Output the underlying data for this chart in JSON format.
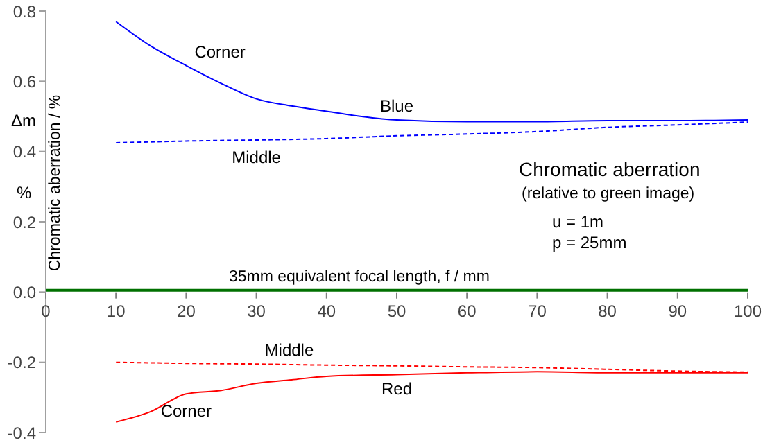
{
  "chart_data": {
    "type": "line",
    "title": "Chromatic aberration",
    "subtitle": "(relative to green image)",
    "xlabel": "35mm equivalent focal length, f / mm",
    "ylabel": "Chromatic aberration  / %",
    "annotations": [
      "Δm",
      "%",
      "u = 1m",
      "p = 25mm",
      {
        "text": "Blue",
        "x": 50,
        "y": 0.49
      },
      {
        "text": "Red",
        "x": 50,
        "y": -0.235
      }
    ],
    "xlim": [
      0,
      100
    ],
    "xticks": [
      0,
      10,
      20,
      30,
      40,
      50,
      60,
      70,
      80,
      90,
      100
    ],
    "ylim": [
      -0.4,
      0.8
    ],
    "yticks": [
      0.8,
      0.6,
      0.4,
      0.2,
      {
        "value": 0,
        "label": "0.0"
      },
      -0.2,
      -0.4
    ],
    "marker": "none",
    "grid": false,
    "legend": false,
    "series": [
      {
        "name": "Corner",
        "color": "#0000ff",
        "line_style": "solid",
        "x": [
          10,
          15,
          20,
          25,
          30,
          35,
          40,
          45,
          50,
          60,
          70,
          80,
          90,
          100
        ],
        "values": [
          0.77,
          0.7,
          0.645,
          0.594,
          0.55,
          0.53,
          0.515,
          0.5,
          0.49,
          0.485,
          0.485,
          0.488,
          0.488,
          0.49
        ]
      },
      {
        "name": "Middle",
        "color": "#0000ff",
        "line_style": "dashed",
        "x": [
          10,
          20,
          30,
          40,
          50,
          60,
          70,
          80,
          90,
          100
        ],
        "values": [
          0.425,
          0.43,
          0.433,
          0.437,
          0.445,
          0.45,
          0.457,
          0.469,
          0.476,
          0.484
        ]
      },
      {
        "name": "Middle",
        "color": "#ff0000",
        "line_style": "dashed",
        "x": [
          10,
          20,
          30,
          40,
          50,
          60,
          70,
          80,
          90,
          100
        ],
        "values": [
          -0.2,
          -0.203,
          -0.205,
          -0.208,
          -0.21,
          -0.213,
          -0.215,
          -0.22,
          -0.225,
          -0.228
        ]
      },
      {
        "name": "Corner",
        "color": "#ff0000",
        "line_style": "solid",
        "x": [
          10,
          15,
          20,
          25,
          30,
          35,
          40,
          50,
          60,
          70,
          80,
          90,
          100
        ],
        "values": [
          -0.37,
          -0.34,
          -0.29,
          -0.28,
          -0.26,
          -0.25,
          -0.24,
          -0.235,
          -0.23,
          -0.227,
          -0.23,
          -0.23,
          -0.23
        ]
      }
    ]
  }
}
